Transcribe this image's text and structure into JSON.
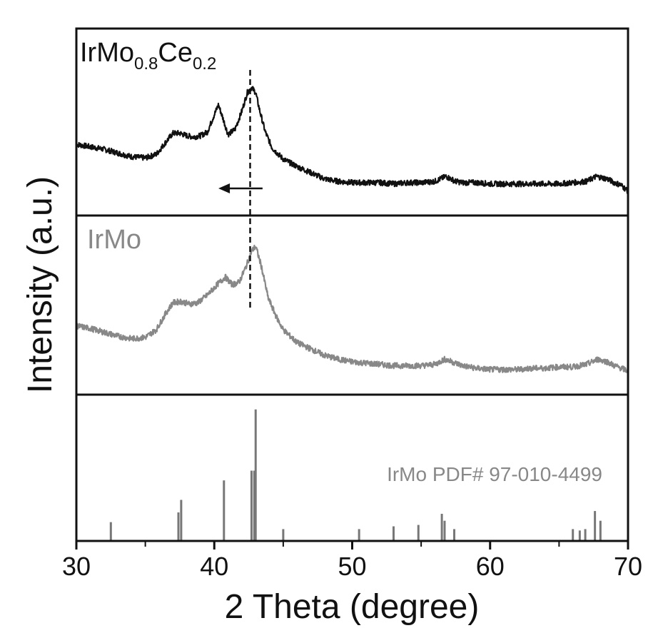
{
  "chart_data": {
    "type": "line",
    "xlabel": "2 Theta (degree)",
    "ylabel": "Intensity (a.u.)",
    "xlim": [
      30,
      70
    ],
    "xticks": [
      "30",
      "40",
      "50",
      "60",
      "70"
    ],
    "grid": false,
    "annotations": {
      "dashed_line_x": 42.6,
      "arrow": {
        "from_x": 43.5,
        "to_x": 40.3,
        "direction": "left"
      }
    },
    "panels": [
      {
        "label_main": "IrMo",
        "label_sub1": "0.8",
        "label_mid": "Ce",
        "label_sub2": "0.2",
        "color": "#111111",
        "series": {
          "name": "IrMo0.8Ce0.2",
          "x": [
            30,
            31,
            32,
            33,
            34,
            35,
            35.8,
            36.5,
            37.0,
            37.5,
            38.0,
            38.5,
            39.0,
            39.5,
            40.0,
            40.3,
            40.6,
            41.0,
            41.5,
            42.0,
            42.4,
            42.7,
            43.0,
            43.3,
            43.7,
            44.2,
            45,
            46,
            47,
            48,
            49,
            50,
            51,
            52,
            53,
            54,
            55,
            56,
            56.8,
            57.5,
            58,
            59,
            60,
            61,
            62,
            63,
            64,
            65,
            66,
            67,
            67.7,
            68.5,
            69,
            69.5,
            70
          ],
          "y": [
            0.38,
            0.36,
            0.34,
            0.31,
            0.28,
            0.27,
            0.3,
            0.4,
            0.47,
            0.47,
            0.45,
            0.44,
            0.45,
            0.48,
            0.62,
            0.7,
            0.6,
            0.46,
            0.5,
            0.65,
            0.8,
            0.84,
            0.8,
            0.65,
            0.48,
            0.35,
            0.26,
            0.2,
            0.15,
            0.1,
            0.08,
            0.07,
            0.07,
            0.07,
            0.06,
            0.07,
            0.07,
            0.08,
            0.12,
            0.08,
            0.07,
            0.07,
            0.06,
            0.06,
            0.06,
            0.06,
            0.06,
            0.06,
            0.07,
            0.08,
            0.12,
            0.1,
            0.07,
            0.05,
            0.0
          ]
        }
      },
      {
        "label": "IrMo",
        "color": "#888888",
        "series": {
          "name": "IrMo",
          "x": [
            30,
            31,
            32,
            33,
            34,
            35,
            35.8,
            36.5,
            37.0,
            37.6,
            38.2,
            38.8,
            39.5,
            40.2,
            40.8,
            41.3,
            41.8,
            42.3,
            42.7,
            43.0,
            43.4,
            43.9,
            44.5,
            45,
            46,
            47,
            48,
            49,
            50,
            51,
            52,
            53,
            54,
            55,
            56,
            56.7,
            57.5,
            58,
            59,
            60,
            61,
            62,
            63,
            64,
            65,
            66,
            67,
            67.8,
            68.5,
            69,
            69.5,
            70
          ],
          "y": [
            0.38,
            0.36,
            0.33,
            0.3,
            0.28,
            0.29,
            0.35,
            0.48,
            0.56,
            0.57,
            0.55,
            0.56,
            0.62,
            0.7,
            0.76,
            0.7,
            0.72,
            0.84,
            0.96,
            1.0,
            0.85,
            0.6,
            0.45,
            0.35,
            0.25,
            0.2,
            0.15,
            0.12,
            0.1,
            0.09,
            0.08,
            0.07,
            0.07,
            0.07,
            0.08,
            0.12,
            0.09,
            0.07,
            0.05,
            0.04,
            0.04,
            0.04,
            0.05,
            0.05,
            0.06,
            0.06,
            0.08,
            0.12,
            0.1,
            0.07,
            0.05,
            0.03
          ]
        }
      },
      {
        "label": "IrMo PDF# 97-010-4499",
        "color": "#777777",
        "type": "stick",
        "sticks": [
          {
            "x": 32.5,
            "y": 0.13
          },
          {
            "x": 37.4,
            "y": 0.2
          },
          {
            "x": 37.6,
            "y": 0.29
          },
          {
            "x": 40.7,
            "y": 0.43
          },
          {
            "x": 42.7,
            "y": 0.5
          },
          {
            "x": 42.9,
            "y": 0.5
          },
          {
            "x": 43.0,
            "y": 0.94
          },
          {
            "x": 45.0,
            "y": 0.08
          },
          {
            "x": 50.5,
            "y": 0.08
          },
          {
            "x": 53.0,
            "y": 0.1
          },
          {
            "x": 54.8,
            "y": 0.11
          },
          {
            "x": 56.5,
            "y": 0.19
          },
          {
            "x": 56.7,
            "y": 0.14
          },
          {
            "x": 57.4,
            "y": 0.08
          },
          {
            "x": 66.0,
            "y": 0.08
          },
          {
            "x": 66.5,
            "y": 0.07
          },
          {
            "x": 66.9,
            "y": 0.08
          },
          {
            "x": 67.6,
            "y": 0.21
          },
          {
            "x": 68.0,
            "y": 0.14
          }
        ]
      }
    ]
  }
}
